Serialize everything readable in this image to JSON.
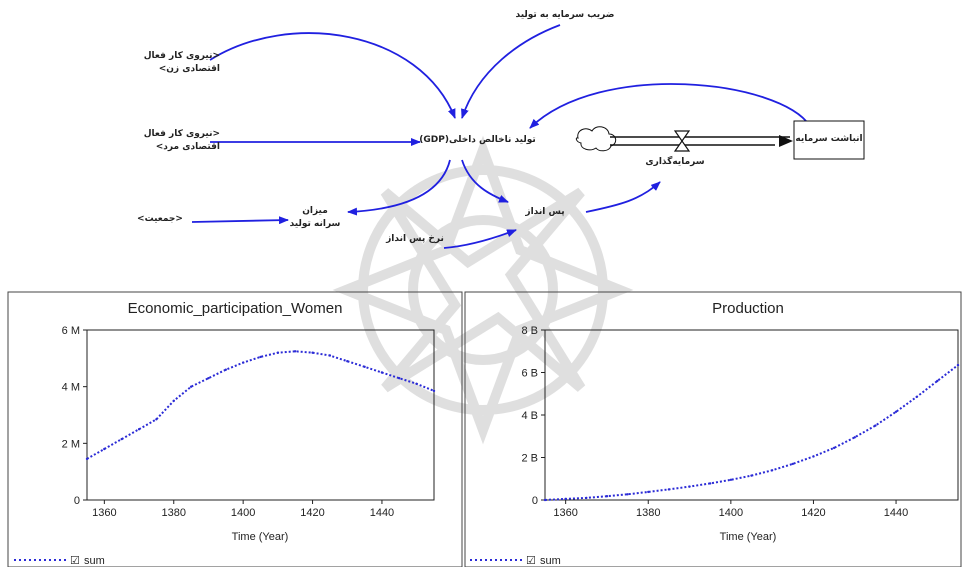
{
  "diagram": {
    "variables": {
      "capital_output_ratio": "ضریب سرمایه به تولید",
      "women_labor": "نیروی کار فعال>\n<اقتصادی زن",
      "men_labor": "نیروی کار فعال>\n<اقتصادی مرد",
      "gdp": "تولید ناخالص داخلی(GDP)",
      "capital_accumulation": "انباشت سرمایه",
      "investment": "سرمایه‌گذاری",
      "population": "<جمعیت>",
      "per_capita_production": "میزان\nسرانه تولید",
      "savings": "پس انداز",
      "savings_rate": "نرخ پس انداز"
    }
  },
  "chart_data": [
    {
      "type": "line",
      "title": "Economic_participation_Women",
      "xlabel": "Time (Year)",
      "ylabel": "",
      "xlim": [
        1355,
        1455
      ],
      "ylim": [
        0,
        6000000
      ],
      "x_ticks": [
        1360,
        1380,
        1400,
        1420,
        1440
      ],
      "y_ticks": [
        {
          "v": 0,
          "label": "0"
        },
        {
          "v": 2000000,
          "label": "2 M"
        },
        {
          "v": 4000000,
          "label": "4 M"
        },
        {
          "v": 6000000,
          "label": "6 M"
        }
      ],
      "legend": {
        "placement": "bottom-left",
        "checkbox": "☑",
        "label": "sum"
      },
      "series": [
        {
          "name": "sum",
          "color": "#2b2bd6",
          "x": [
            1355,
            1360,
            1365,
            1370,
            1375,
            1380,
            1385,
            1390,
            1395,
            1400,
            1405,
            1410,
            1415,
            1420,
            1425,
            1430,
            1435,
            1440,
            1445,
            1450,
            1455
          ],
          "y": [
            1450000,
            1800000,
            2150000,
            2500000,
            2850000,
            3500000,
            4000000,
            4300000,
            4600000,
            4850000,
            5050000,
            5200000,
            5250000,
            5200000,
            5100000,
            4900000,
            4700000,
            4500000,
            4300000,
            4100000,
            3850000
          ]
        }
      ]
    },
    {
      "type": "line",
      "title": "Production",
      "xlabel": "Time (Year)",
      "ylabel": "",
      "xlim": [
        1355,
        1455
      ],
      "ylim": [
        0,
        8000000000
      ],
      "x_ticks": [
        1360,
        1380,
        1400,
        1420,
        1440
      ],
      "y_ticks": [
        {
          "v": 0,
          "label": "0"
        },
        {
          "v": 2000000000,
          "label": "2 B"
        },
        {
          "v": 4000000000,
          "label": "4 B"
        },
        {
          "v": 6000000000,
          "label": "6 B"
        },
        {
          "v": 8000000000,
          "label": "8 B"
        }
      ],
      "legend": {
        "placement": "bottom-left",
        "checkbox": "☑",
        "label": "sum"
      },
      "series": [
        {
          "name": "sum",
          "color": "#2b2bd6",
          "x": [
            1355,
            1360,
            1365,
            1370,
            1375,
            1380,
            1385,
            1390,
            1395,
            1400,
            1405,
            1410,
            1415,
            1420,
            1425,
            1430,
            1435,
            1440,
            1445,
            1450,
            1455
          ],
          "y": [
            0,
            50000000,
            100000000,
            180000000,
            270000000,
            380000000,
            500000000,
            630000000,
            780000000,
            950000000,
            1150000000,
            1400000000,
            1700000000,
            2050000000,
            2450000000,
            2950000000,
            3500000000,
            4150000000,
            4850000000,
            5600000000,
            6350000000
          ]
        }
      ]
    }
  ]
}
